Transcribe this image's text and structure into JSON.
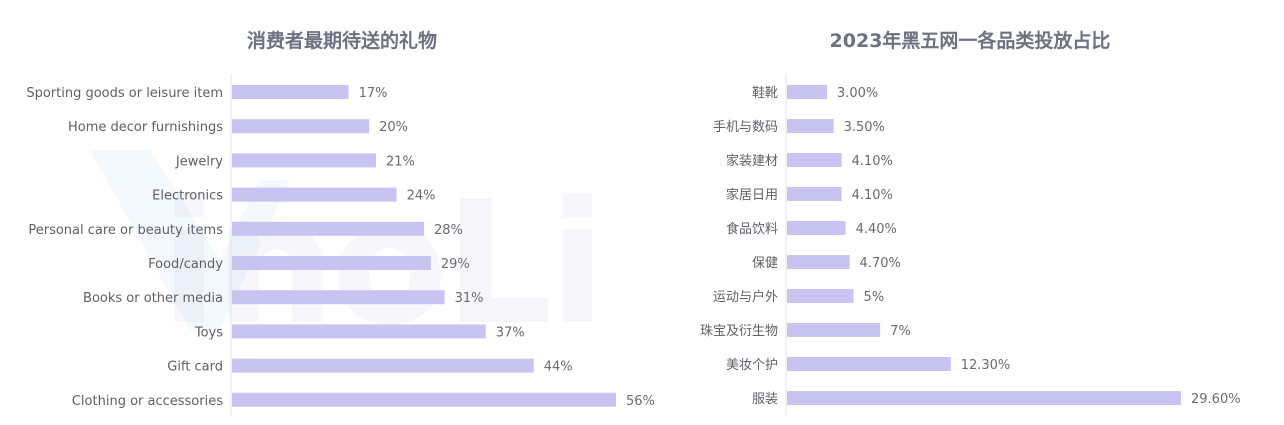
{
  "colors": {
    "bar": "#c8c3f1",
    "axis": "#e6e6e6",
    "title": "#6d7283"
  },
  "chart_data": [
    {
      "type": "bar",
      "orientation": "horizontal",
      "title": "消费者最期待送的礼物",
      "categories": [
        "Sporting goods or leisure item",
        "Home decor furnishings",
        "Jewelry",
        "Electronics",
        "Personal care or beauty items",
        "Food/candy",
        "Books or other media",
        "Toys",
        "Gift card",
        "Clothing or accessories"
      ],
      "values": [
        17,
        20,
        21,
        24,
        28,
        29,
        31,
        37,
        44,
        56
      ],
      "value_labels": [
        "17%",
        "20%",
        "21%",
        "24%",
        "28%",
        "29%",
        "31%",
        "37%",
        "44%",
        "56%"
      ],
      "unit": "%",
      "grid": false
    },
    {
      "type": "bar",
      "orientation": "horizontal",
      "title": "2023年黑五网一各品类投放占比",
      "categories": [
        "鞋靴",
        "手机与数码",
        "家装建材",
        "家居日用",
        "食品饮料",
        "保健",
        "运动与户外",
        "珠宝及衍生物",
        "美妆个护",
        "服装"
      ],
      "values": [
        3.0,
        3.5,
        4.1,
        4.1,
        4.4,
        4.7,
        5,
        7,
        12.3,
        29.6
      ],
      "value_labels": [
        "3.00%",
        "3.50%",
        "4.10%",
        "4.10%",
        "4.40%",
        "4.70%",
        "5%",
        "7%",
        "12.30%",
        "29.60%"
      ],
      "unit": "%",
      "grid": false
    }
  ]
}
